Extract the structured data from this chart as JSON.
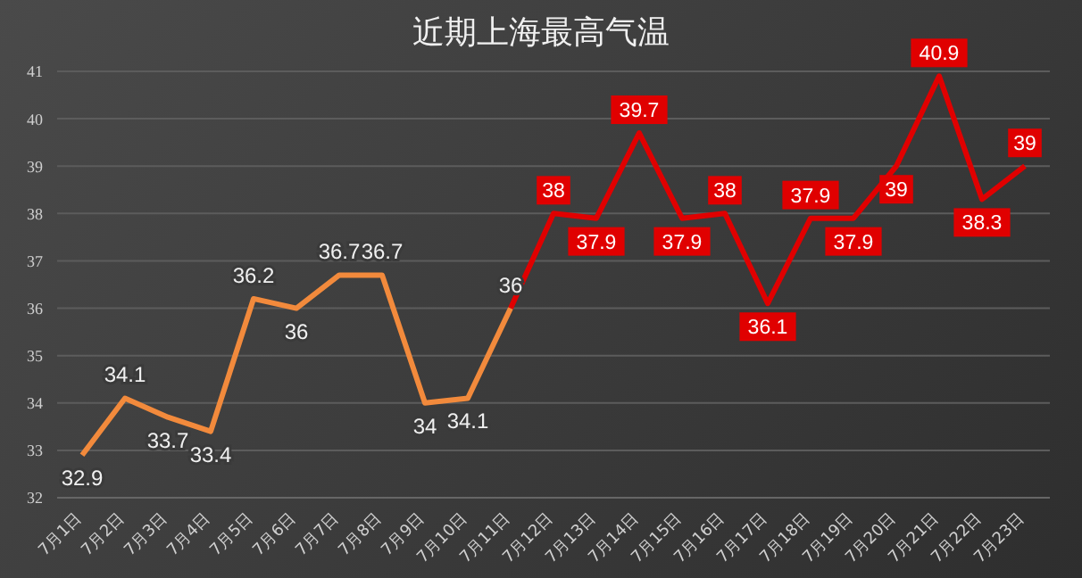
{
  "chart_data": {
    "type": "line",
    "title": "近期上海最高气温",
    "categories": [
      "7月1日",
      "7月2日",
      "7月3日",
      "7月4日",
      "7月5日",
      "7月6日",
      "7月7日",
      "7月8日",
      "7月9日",
      "7月10日",
      "7月11日",
      "7月12日",
      "7月13日",
      "7月14日",
      "7月15日",
      "7月16日",
      "7月17日",
      "7月18日",
      "7月19日",
      "7月20日",
      "7月21日",
      "7月22日",
      "7月23日"
    ],
    "series": [
      {
        "color": "#f28a3c",
        "values": [
          32.9,
          34.1,
          33.7,
          33.4,
          36.2,
          36,
          36.7,
          36.7,
          34,
          34.1,
          36,
          null,
          null,
          null,
          null,
          null,
          null,
          null,
          null,
          null,
          null,
          null,
          null
        ],
        "value_labels": [
          "32.9",
          "34.1",
          "33.7",
          "33.4",
          "36.2",
          "36",
          "36.7",
          "36.7",
          "34",
          "34.1",
          "36",
          null,
          null,
          null,
          null,
          null,
          null,
          null,
          null,
          null,
          null,
          null,
          null
        ]
      },
      {
        "color": "#e00000",
        "values": [
          null,
          null,
          null,
          null,
          null,
          null,
          null,
          null,
          null,
          null,
          36,
          38,
          37.9,
          39.7,
          37.9,
          38,
          36.1,
          37.9,
          37.9,
          39,
          40.9,
          38.3,
          39
        ],
        "value_labels": [
          null,
          null,
          null,
          null,
          null,
          null,
          null,
          null,
          null,
          null,
          null,
          "38",
          "37.9",
          "39.7",
          "37.9",
          "38",
          "36.1",
          "37.9",
          "37.9",
          "39",
          "40.9",
          "38.3",
          "39"
        ]
      }
    ],
    "ylim": [
      32,
      41
    ],
    "yticks": [
      32,
      33,
      34,
      35,
      36,
      37,
      38,
      39,
      40,
      41
    ],
    "grid": "y",
    "line_style": "solid",
    "legend": false
  }
}
